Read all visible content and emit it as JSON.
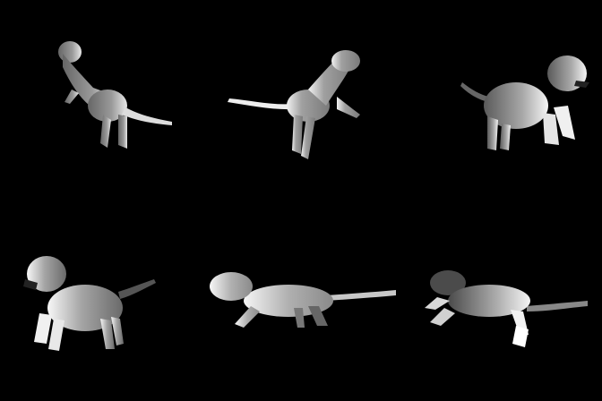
{
  "scene": {
    "background": "#000000",
    "description_kind": "depth-map-grid",
    "rows": 2,
    "cols": 3,
    "subject": "tiger",
    "panels": [
      {
        "pose": "standing-looking-back",
        "facing": "left"
      },
      {
        "pose": "walking-looking-back",
        "facing": "right"
      },
      {
        "pose": "standing-roaring",
        "facing": "right"
      },
      {
        "pose": "standing-roaring",
        "facing": "left"
      },
      {
        "pose": "leaping",
        "facing": "left"
      },
      {
        "pose": "leaping",
        "facing": "left"
      }
    ]
  }
}
